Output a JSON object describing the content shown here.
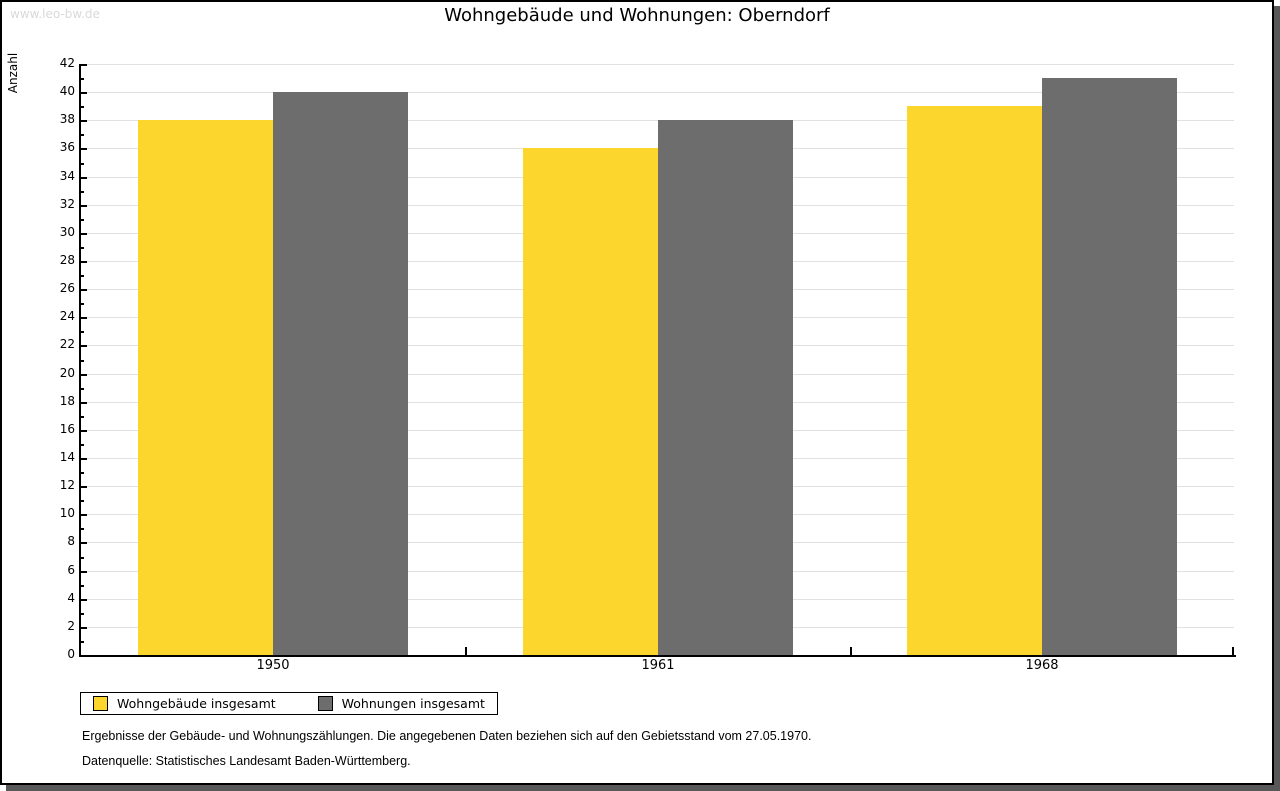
{
  "watermark": "www.leo-bw.de",
  "title": "Wohngebäude und Wohnungen: Oberndorf",
  "chart_data": {
    "type": "bar",
    "title": "Wohngebäude und Wohnungen: Oberndorf",
    "categories": [
      "1950",
      "1961",
      "1968"
    ],
    "series": [
      {
        "name": "Wohngebäude insgesamt",
        "color": "#FCD62D",
        "values": [
          38,
          36,
          39
        ]
      },
      {
        "name": "Wohnungen insgesamt",
        "color": "#6D6D6D",
        "values": [
          40,
          38,
          41
        ]
      }
    ],
    "xlabel": "",
    "ylabel": "Anzahl",
    "ylim": [
      0,
      42
    ],
    "ytick_step": 2,
    "grid": true,
    "gridline_color": "#e1e1e1",
    "legend_position": "bottom-left"
  },
  "footer": {
    "line1": "Ergebnisse der Gebäude- und Wohnungszählungen. Die angegebenen Daten beziehen sich auf den Gebietsstand vom 27.05.1970.",
    "line2": "Datenquelle: Statistisches Landesamt Baden-Württemberg."
  }
}
